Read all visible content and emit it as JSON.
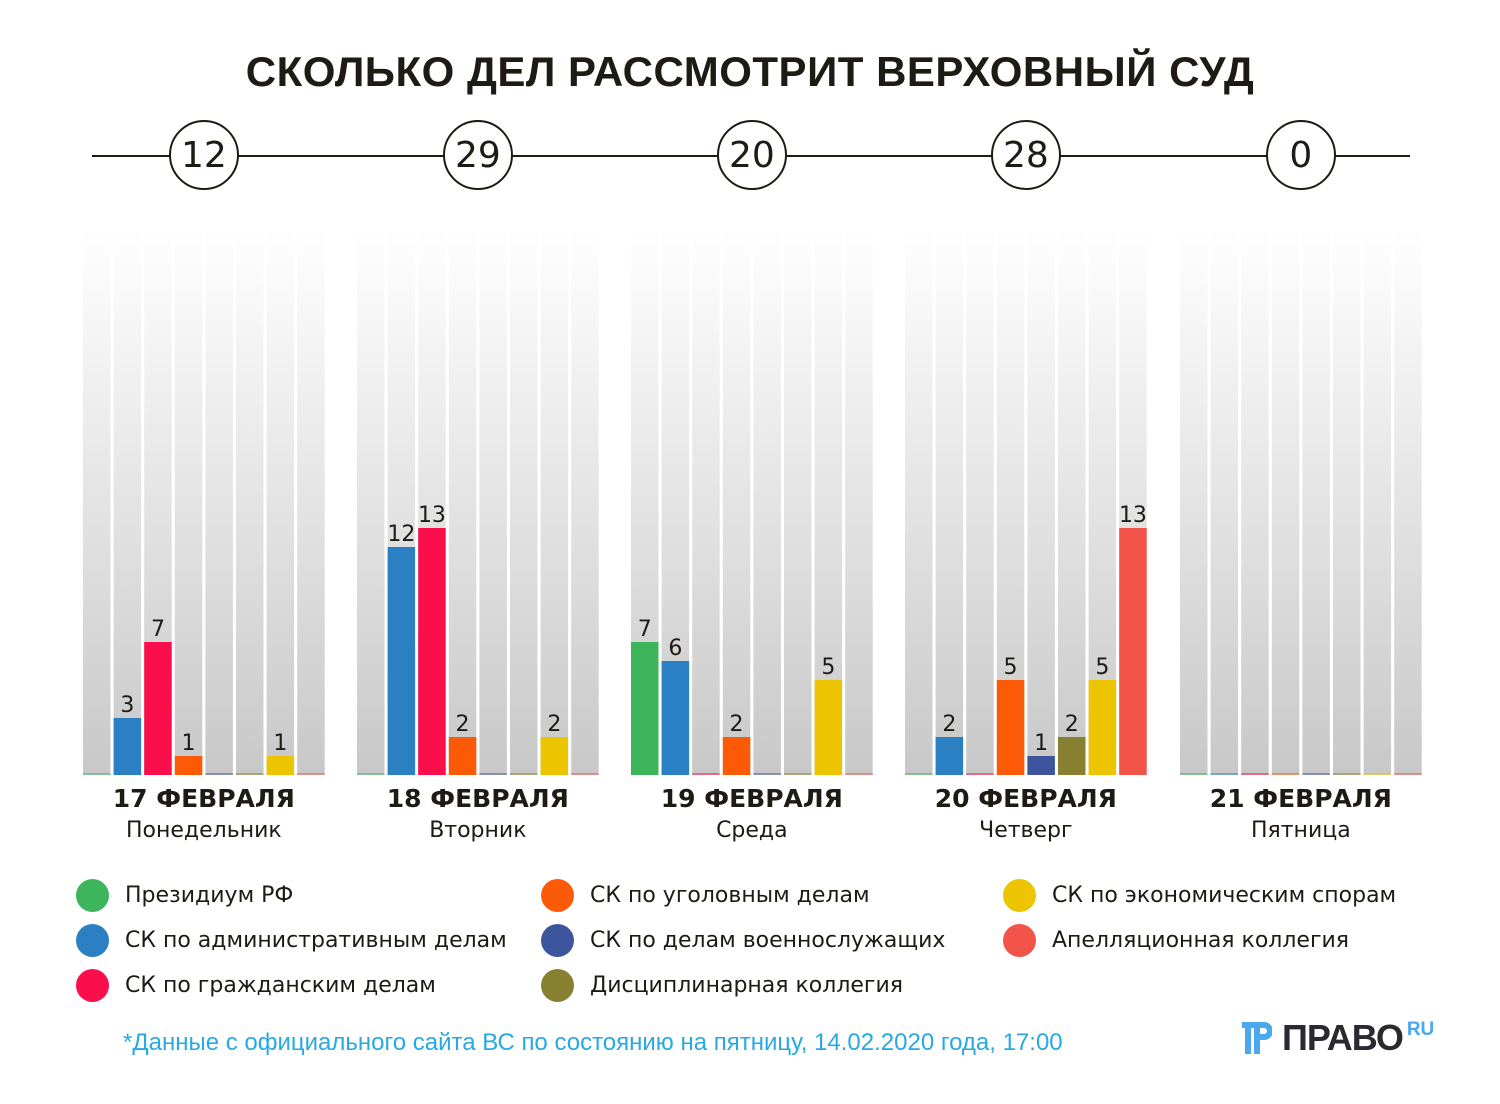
{
  "title": "СКОЛЬКО ДЕЛ РАССМОТРИТ ВЕРХОВНЫЙ СУД",
  "chart_data": {
    "type": "bar",
    "title": "СКОЛЬКО ДЕЛ РАССМОТРИТ ВЕРХОВНЫЙ СУД",
    "xlabel": "",
    "ylabel": "",
    "ylim": [
      0,
      28
    ],
    "grid": false,
    "legend_position": "bottom",
    "categories": [
      "17 ФЕВРАЛЯ",
      "18 ФЕВРАЛЯ",
      "19 ФЕВРАЛЯ",
      "20 ФЕВРАЛЯ",
      "21 ФЕВРАЛЯ"
    ],
    "weekdays": [
      "Понедельник",
      "Вторник",
      "Среда",
      "Четверг",
      "Пятница"
    ],
    "totals": [
      12,
      29,
      20,
      28,
      0
    ],
    "series": [
      {
        "name": "Президиум РФ",
        "color": "#3db55a",
        "values": [
          0,
          0,
          7,
          0,
          0
        ]
      },
      {
        "name": "СК по административным делам",
        "color": "#2b7fc3",
        "values": [
          3,
          12,
          6,
          2,
          0
        ]
      },
      {
        "name": "СК по гражданским делам",
        "color": "#fb0e4c",
        "values": [
          7,
          13,
          0,
          0,
          0
        ]
      },
      {
        "name": "СК по уголовным делам",
        "color": "#fc5a07",
        "values": [
          1,
          2,
          2,
          5,
          0
        ]
      },
      {
        "name": "СК по делам военнослужащих",
        "color": "#3d559d",
        "values": [
          0,
          0,
          0,
          1,
          0
        ]
      },
      {
        "name": "Дисциплинарная коллегия",
        "color": "#878030",
        "values": [
          0,
          0,
          0,
          2,
          0
        ]
      },
      {
        "name": "СК по экономическим спорам",
        "color": "#ecc500",
        "values": [
          1,
          2,
          5,
          5,
          0
        ]
      },
      {
        "name": "Апелляционная коллегия",
        "color": "#f2544a",
        "values": [
          0,
          0,
          0,
          13,
          0
        ]
      }
    ]
  },
  "legend": [
    {
      "label": "Президиум РФ",
      "color": "#3db55a"
    },
    {
      "label": "СК по административным делам",
      "color": "#2b7fc3"
    },
    {
      "label": "СК по гражданским делам",
      "color": "#fb0e4c"
    },
    {
      "label": "СК по уголовным делам",
      "color": "#fc5a07"
    },
    {
      "label": "СК по делам военнослужащих",
      "color": "#3d559d"
    },
    {
      "label": "Дисциплинарная коллегия",
      "color": "#878030"
    },
    {
      "label": "СК по экономическим спорам",
      "color": "#ecc500"
    },
    {
      "label": "Апелляционная коллегия",
      "color": "#f2544a"
    }
  ],
  "footnote": "*Данные с официального сайта ВС по состоянию на пятницу, 14.02.2020 года, 17:00",
  "logo": {
    "text": "ПРАВО",
    "suffix": "RU",
    "icon": "pravo-logo-icon"
  }
}
